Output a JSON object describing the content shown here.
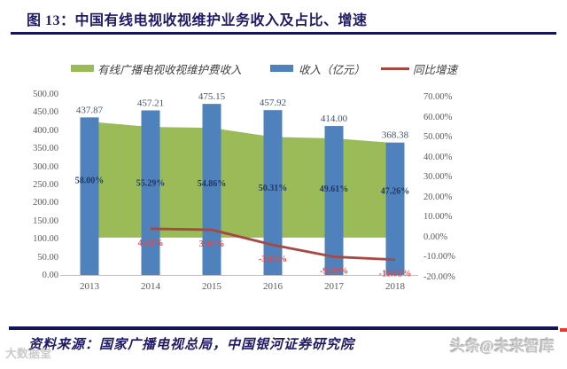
{
  "figure": {
    "title": "图 13：中国有线电视收视维护业务收入及占比、增速"
  },
  "legend": {
    "items": [
      {
        "label": "有线广播电视收视维护费收入",
        "color": "#9bbb59"
      },
      {
        "label": "收入（亿元）",
        "color": "#4f81bd"
      },
      {
        "label": "同比增速",
        "color": "#a84843"
      }
    ]
  },
  "chart_data": {
    "type": "combo",
    "title": "中国有线电视收视维护业务收入及占比、增速",
    "categories": [
      "2013",
      "2014",
      "2015",
      "2016",
      "2017",
      "2018"
    ],
    "series": [
      {
        "name": "有线广播电视收视维护费收入",
        "type": "area",
        "axis": "right",
        "unit": "%",
        "values": [
          58.0,
          55.29,
          54.86,
          50.31,
          49.61,
          47.26
        ],
        "labels": [
          "58.00%",
          "55.29%",
          "54.86%",
          "50.31%",
          "49.61%",
          "47.26%"
        ],
        "color": "#9bbb59",
        "label_color": "#1f3864"
      },
      {
        "name": "收入（亿元）",
        "type": "bar",
        "axis": "left",
        "unit": "亿元",
        "values": [
          437.87,
          457.21,
          475.15,
          457.92,
          414.0,
          368.38
        ],
        "labels": [
          "437.87",
          "457.21",
          "475.15",
          "457.92",
          "414.00",
          "368.38"
        ],
        "color": "#4f81bd",
        "label_color": "#44546a"
      },
      {
        "name": "同比增速",
        "type": "line",
        "axis": "right",
        "unit": "%",
        "values": [
          null,
          4.42,
          3.92,
          -3.63,
          -9.59,
          -11.02
        ],
        "labels": [
          null,
          "4.42%",
          "3.92%",
          "-3.63%",
          "-9.59%",
          "-11.02%"
        ],
        "color": "#a84843",
        "label_color": "#e04b4b"
      }
    ],
    "left_axis": {
      "min": 0,
      "max": 500,
      "step": 50,
      "ticks": [
        "500.00",
        "450.00",
        "400.00",
        "350.00",
        "300.00",
        "250.00",
        "200.00",
        "150.00",
        "100.00",
        "50.00",
        "0.00"
      ]
    },
    "right_axis": {
      "min": -20,
      "max": 70,
      "step": 10,
      "ticks": [
        "70.00%",
        "60.00%",
        "50.00%",
        "40.00%",
        "30.00%",
        "20.00%",
        "10.00%",
        "0.00%",
        "-10.00%",
        "-20.00%"
      ]
    },
    "grid": false,
    "legend_position": "top"
  },
  "footer": {
    "source": "资料来源：国家广播电视总局，中国银河证券研究院"
  },
  "watermarks": {
    "bottom_left": "大数据堂",
    "bottom_right": "头条@未来智库"
  }
}
